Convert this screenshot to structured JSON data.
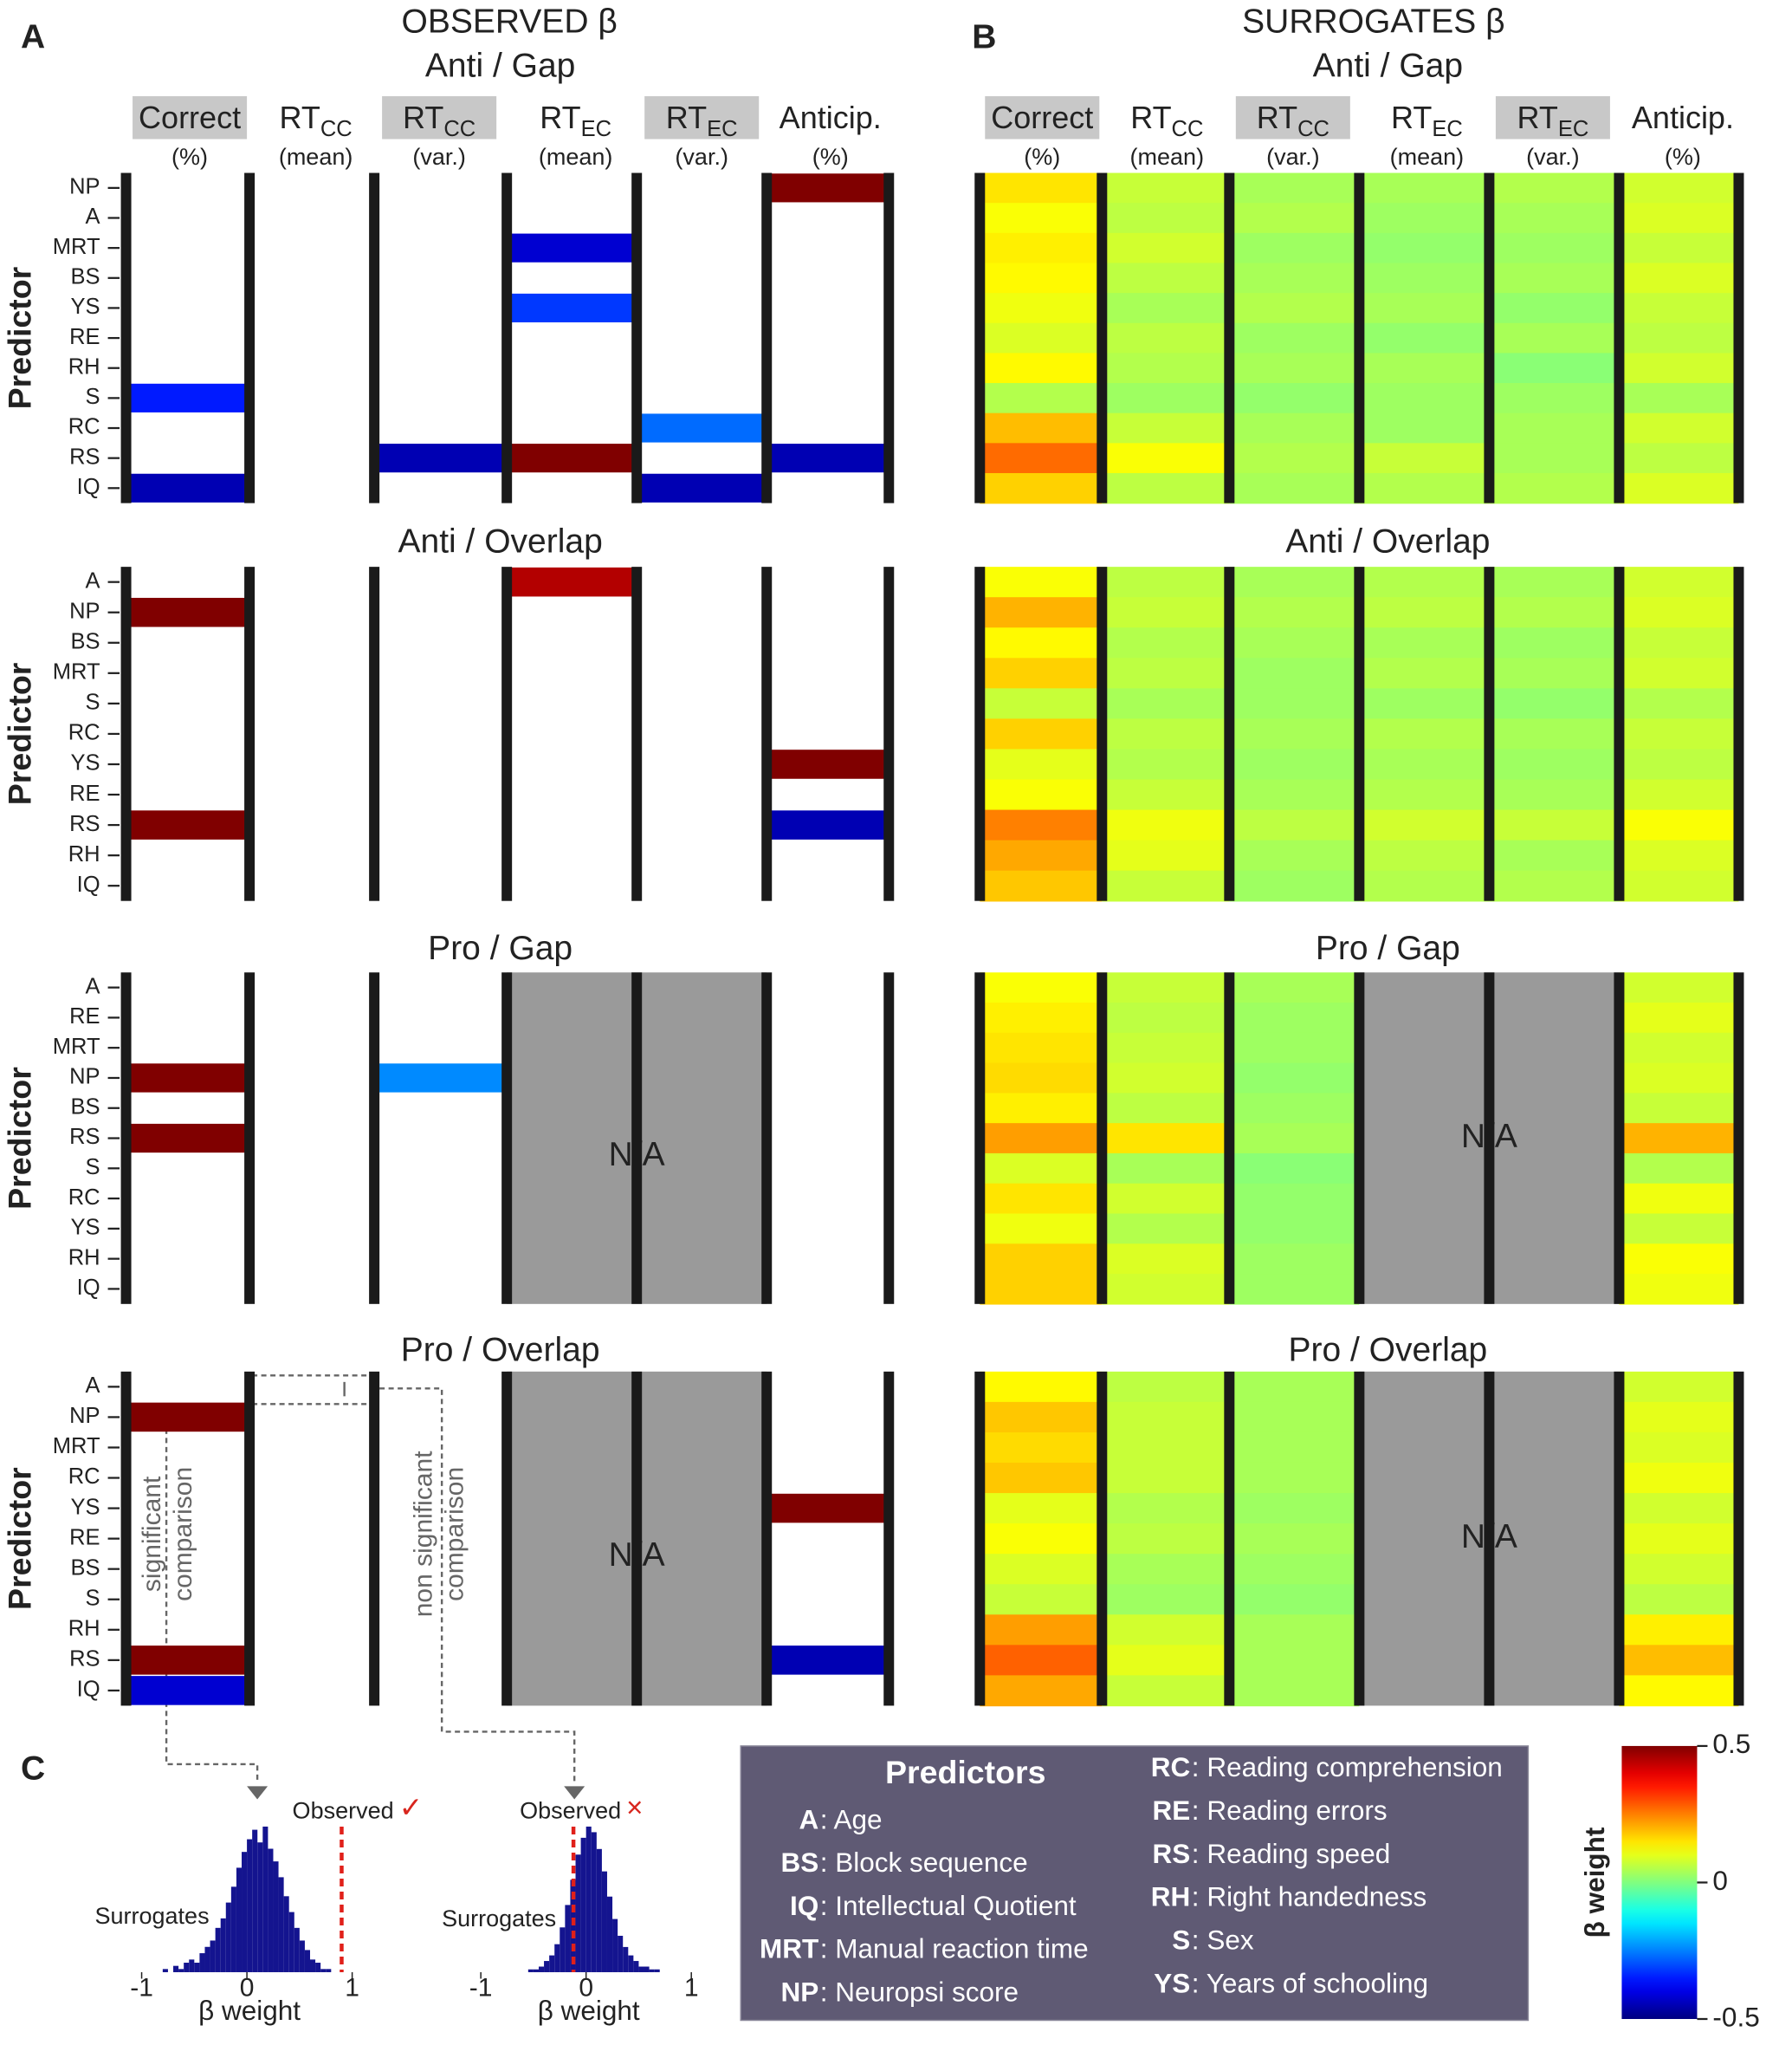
{
  "panel_labels": [
    "A",
    "B",
    "C"
  ],
  "observed_title": "OBSERVED β",
  "surrogates_title": "SURROGATES β",
  "columns": [
    {
      "name": "Correct",
      "note": "(%)",
      "highlight": true
    },
    {
      "name": "RT",
      "sub": "CC",
      "note": "(mean)",
      "highlight": false
    },
    {
      "name": "RT",
      "sub": "CC",
      "note": "(var.)",
      "highlight": true
    },
    {
      "name": "RT",
      "sub": "EC",
      "note": "(mean)",
      "highlight": false
    },
    {
      "name": "RT",
      "sub": "EC",
      "note": "(var.)",
      "highlight": true
    },
    {
      "name": "Anticip.",
      "note": "(%)",
      "highlight": false
    }
  ],
  "y_label": "Predictor",
  "na_label": "N/A",
  "blocks": [
    {
      "title": "Anti / Gap",
      "predictors": [
        "NP",
        "A",
        "MRT",
        "BS",
        "YS",
        "RE",
        "RH",
        "S",
        "RC",
        "RS",
        "IQ"
      ],
      "observed": [
        [
          null,
          null,
          null,
          null,
          null,
          null,
          null,
          -0.35,
          null,
          null,
          -0.45
        ],
        [
          null,
          null,
          null,
          null,
          null,
          null,
          null,
          null,
          null,
          null,
          null
        ],
        [
          null,
          null,
          null,
          null,
          null,
          null,
          null,
          null,
          null,
          -0.45,
          null
        ],
        [
          null,
          null,
          -0.42,
          null,
          -0.32,
          null,
          null,
          null,
          null,
          0.5,
          null
        ],
        [
          null,
          null,
          null,
          null,
          null,
          null,
          null,
          null,
          -0.27,
          null,
          -0.45
        ],
        [
          0.5,
          null,
          null,
          null,
          null,
          null,
          null,
          null,
          null,
          -0.45,
          null
        ]
      ],
      "surrogates": [
        [
          0.15,
          0.12,
          0.14,
          0.13,
          0.11,
          0.09,
          0.13,
          0.05,
          0.19,
          0.27,
          0.17
        ],
        [
          0.07,
          0.06,
          0.08,
          0.06,
          0.04,
          0.06,
          0.05,
          0.03,
          0.07,
          0.12,
          0.06
        ],
        [
          0.04,
          0.05,
          0.03,
          0.04,
          0.05,
          0.03,
          0.04,
          0.02,
          0.04,
          0.05,
          0.04
        ],
        [
          0.04,
          0.03,
          0.02,
          0.03,
          0.04,
          0.02,
          0.04,
          0.03,
          0.03,
          0.07,
          0.05
        ],
        [
          0.05,
          0.04,
          0.03,
          0.04,
          0.02,
          0.04,
          0.01,
          0.03,
          0.04,
          0.04,
          0.05
        ],
        [
          0.08,
          0.09,
          0.07,
          0.09,
          0.07,
          0.06,
          0.08,
          0.04,
          0.08,
          0.06,
          0.09
        ]
      ]
    },
    {
      "title": "Anti / Overlap",
      "predictors": [
        "A",
        "NP",
        "BS",
        "MRT",
        "S",
        "RC",
        "YS",
        "RE",
        "RS",
        "RH",
        "IQ"
      ],
      "observed": [
        [
          null,
          0.5,
          null,
          null,
          null,
          null,
          null,
          null,
          0.5,
          null,
          null
        ],
        [
          null,
          null,
          null,
          null,
          null,
          null,
          null,
          null,
          null,
          null,
          null
        ],
        [
          null,
          null,
          null,
          null,
          null,
          null,
          null,
          null,
          null,
          null,
          null
        ],
        [
          0.45,
          null,
          null,
          null,
          null,
          null,
          null,
          null,
          null,
          null,
          null
        ],
        [
          null,
          null,
          null,
          null,
          null,
          null,
          null,
          null,
          null,
          null,
          null
        ],
        [
          null,
          null,
          null,
          null,
          null,
          null,
          0.5,
          null,
          -0.45,
          null,
          null
        ]
      ],
      "surrogates": [
        [
          0.12,
          0.2,
          0.13,
          0.17,
          0.07,
          0.17,
          0.1,
          0.12,
          0.25,
          0.21,
          0.18
        ],
        [
          0.06,
          0.07,
          0.05,
          0.06,
          0.04,
          0.06,
          0.05,
          0.07,
          0.11,
          0.1,
          0.07
        ],
        [
          0.04,
          0.05,
          0.04,
          0.03,
          0.03,
          0.04,
          0.03,
          0.04,
          0.06,
          0.04,
          0.03
        ],
        [
          0.05,
          0.06,
          0.04,
          0.05,
          0.03,
          0.05,
          0.04,
          0.05,
          0.08,
          0.06,
          0.05
        ],
        [
          0.04,
          0.05,
          0.03,
          0.04,
          0.02,
          0.04,
          0.03,
          0.04,
          0.07,
          0.04,
          0.05
        ],
        [
          0.08,
          0.09,
          0.07,
          0.08,
          0.05,
          0.07,
          0.06,
          0.08,
          0.12,
          0.09,
          0.08
        ]
      ]
    },
    {
      "title": "Pro / Gap",
      "predictors": [
        "A",
        "RE",
        "MRT",
        "NP",
        "BS",
        "RS",
        "S",
        "RC",
        "YS",
        "RH",
        "IQ"
      ],
      "observed": [
        [
          null,
          null,
          null,
          0.5,
          null,
          0.5,
          null,
          null,
          null,
          null,
          null
        ],
        [
          null,
          null,
          null,
          null,
          null,
          null,
          null,
          null,
          null,
          null,
          null
        ],
        [
          null,
          null,
          null,
          -0.24,
          null,
          null,
          null,
          null,
          null,
          null,
          null
        ],
        [
          null,
          null,
          null,
          null,
          null,
          null,
          null,
          null,
          null,
          null,
          null
        ],
        [
          null,
          null,
          null,
          null,
          null,
          null,
          null,
          null,
          null,
          null,
          null
        ],
        [
          null,
          null,
          null,
          null,
          null,
          null,
          null,
          null,
          null,
          null,
          null
        ]
      ],
      "surrogates": [
        [
          0.12,
          0.14,
          0.15,
          0.16,
          0.14,
          0.22,
          0.09,
          0.15,
          0.11,
          0.17,
          0.17
        ],
        [
          0.07,
          0.06,
          0.07,
          0.08,
          0.06,
          0.15,
          0.04,
          0.08,
          0.05,
          0.09,
          0.08
        ],
        [
          0.04,
          0.03,
          0.03,
          0.02,
          0.03,
          0.04,
          0.01,
          0.02,
          0.02,
          0.03,
          0.03
        ],
        [
          null,
          null,
          null,
          null,
          null,
          null,
          null,
          null,
          null,
          null,
          null
        ],
        [
          null,
          null,
          null,
          null,
          null,
          null,
          null,
          null,
          null,
          null,
          null
        ],
        [
          0.08,
          0.1,
          0.08,
          0.09,
          0.07,
          0.2,
          0.05,
          0.11,
          0.07,
          0.12,
          0.11
        ]
      ]
    },
    {
      "title": "Pro / Overlap",
      "predictors": [
        "A",
        "NP",
        "MRT",
        "RC",
        "YS",
        "RE",
        "BS",
        "S",
        "RH",
        "RS",
        "IQ"
      ],
      "observed": [
        [
          null,
          0.5,
          null,
          null,
          null,
          null,
          null,
          null,
          null,
          0.5,
          -0.42
        ],
        [
          null,
          null,
          null,
          null,
          null,
          null,
          null,
          null,
          null,
          null,
          null
        ],
        [
          null,
          null,
          null,
          null,
          null,
          null,
          null,
          null,
          null,
          null,
          null
        ],
        [
          null,
          null,
          null,
          null,
          null,
          null,
          null,
          null,
          null,
          null,
          null
        ],
        [
          null,
          null,
          null,
          null,
          null,
          null,
          null,
          null,
          null,
          null,
          null
        ],
        [
          null,
          null,
          null,
          null,
          0.5,
          null,
          null,
          null,
          null,
          -0.45,
          null
        ]
      ],
      "surrogates": [
        [
          0.13,
          0.18,
          0.16,
          0.18,
          0.1,
          0.12,
          0.09,
          0.07,
          0.22,
          0.28,
          0.21
        ],
        [
          0.06,
          0.07,
          0.07,
          0.07,
          0.05,
          0.06,
          0.04,
          0.03,
          0.08,
          0.1,
          0.07
        ],
        [
          0.04,
          0.04,
          0.04,
          0.04,
          0.03,
          0.04,
          0.03,
          0.02,
          0.04,
          0.04,
          0.04
        ],
        [
          null,
          null,
          null,
          null,
          null,
          null,
          null,
          null,
          null,
          null,
          null
        ],
        [
          null,
          null,
          null,
          null,
          null,
          null,
          null,
          null,
          null,
          null,
          null
        ],
        [
          0.08,
          0.1,
          0.09,
          0.11,
          0.08,
          0.1,
          0.08,
          0.06,
          0.14,
          0.19,
          0.13
        ]
      ]
    }
  ],
  "annotations": {
    "significant": [
      "significant",
      "comparison"
    ],
    "non_significant": [
      "non significant",
      "comparison"
    ]
  },
  "histograms": [
    {
      "bins": [
        -0.8,
        -0.75,
        -0.7,
        -0.65,
        -0.6,
        -0.55,
        -0.5,
        -0.45,
        -0.4,
        -0.35,
        -0.3,
        -0.25,
        -0.2,
        -0.15,
        -0.1,
        -0.05,
        0,
        0.05,
        0.1,
        0.15,
        0.2,
        0.25,
        0.3,
        0.35,
        0.4,
        0.45,
        0.5,
        0.55,
        0.6,
        0.65,
        0.7,
        0.75,
        0.8
      ],
      "counts": [
        1,
        0,
        2,
        1,
        3,
        4,
        3,
        6,
        8,
        10,
        14,
        17,
        22,
        27,
        33,
        38,
        42,
        45,
        41,
        46,
        39,
        35,
        30,
        24,
        19,
        14,
        10,
        7,
        4,
        3,
        1,
        1
      ],
      "observed": 0.9,
      "observed_label": "Observed",
      "verdict": "✓",
      "surrogates_label": "Surrogates",
      "xlabel": "β weight",
      "xlim": [
        -1.1,
        1.1
      ],
      "xticks": [
        -1,
        0,
        1
      ]
    },
    {
      "bins": [
        -0.8,
        -0.75,
        -0.7,
        -0.65,
        -0.6,
        -0.55,
        -0.5,
        -0.45,
        -0.4,
        -0.35,
        -0.3,
        -0.25,
        -0.2,
        -0.15,
        -0.1,
        -0.05,
        0,
        0.05,
        0.1,
        0.15,
        0.2,
        0.25,
        0.3,
        0.35,
        0.4,
        0.45,
        0.5,
        0.55,
        0.6,
        0.65,
        0.7,
        0.75,
        0.8
      ],
      "counts": [
        0,
        0,
        0,
        0,
        0,
        1,
        1,
        2,
        4,
        6,
        10,
        16,
        24,
        33,
        42,
        48,
        52,
        50,
        44,
        36,
        27,
        19,
        13,
        9,
        6,
        4,
        2,
        2,
        1,
        1,
        0,
        0
      ],
      "observed": -0.12,
      "observed_label": "Observed",
      "verdict": "×",
      "surrogates_label": "Surrogates",
      "xlabel": "β weight",
      "xlim": [
        -1.1,
        1.1
      ],
      "xticks": [
        -1,
        0,
        1
      ]
    }
  ],
  "legend": {
    "title": "Predictors",
    "entries": [
      {
        "abbr": "A",
        "desc": ": Age"
      },
      {
        "abbr": "BS",
        "desc": ": Block sequence"
      },
      {
        "abbr": "IQ",
        "desc": ": Intellectual Quotient"
      },
      {
        "abbr": "MRT",
        "desc": ": Manual reaction time"
      },
      {
        "abbr": "NP",
        "desc": ": Neuropsi score"
      },
      {
        "abbr": "RC",
        "desc": ": Reading comprehension"
      },
      {
        "abbr": "RE",
        "desc": ": Reading errors"
      },
      {
        "abbr": "RS",
        "desc": ": Reading speed"
      },
      {
        "abbr": "RH",
        "desc": ": Right handedness"
      },
      {
        "abbr": "S",
        "desc": ": Sex"
      },
      {
        "abbr": "YS",
        "desc": ": Years of schooling"
      }
    ]
  },
  "colorbar": {
    "label": "β weight",
    "clim": [
      -0.5,
      0.5
    ],
    "ticks": [
      0.5,
      0,
      -0.5
    ],
    "colormap": "jet"
  }
}
